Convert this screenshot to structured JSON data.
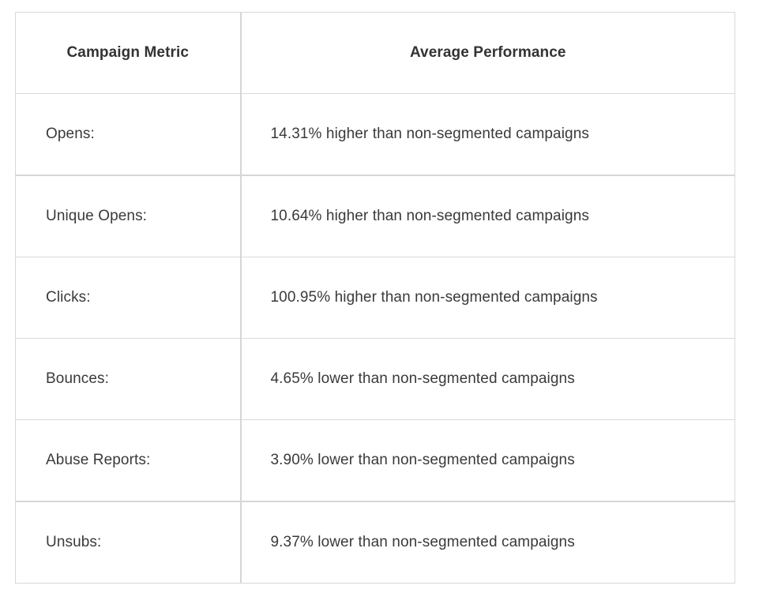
{
  "table": {
    "headers": [
      "Campaign Metric",
      "Average Performance"
    ],
    "rows": [
      {
        "metric": "Opens:",
        "performance": "14.31% higher than non-segmented campaigns"
      },
      {
        "metric": "Unique Opens:",
        "performance": "10.64% higher than non-segmented campaigns"
      },
      {
        "metric": "Clicks:",
        "performance": "100.95% higher than non-segmented campaigns"
      },
      {
        "metric": "Bounces:",
        "performance": "4.65% lower than non-segmented campaigns"
      },
      {
        "metric": "Abuse Reports:",
        "performance": "3.90% lower than non-segmented campaigns"
      },
      {
        "metric": "Unsubs:",
        "performance": "9.37% lower than non-segmented campaigns"
      }
    ]
  },
  "colors": {
    "border": "#d9d9d9",
    "text": "#333333",
    "background": "#ffffff"
  }
}
